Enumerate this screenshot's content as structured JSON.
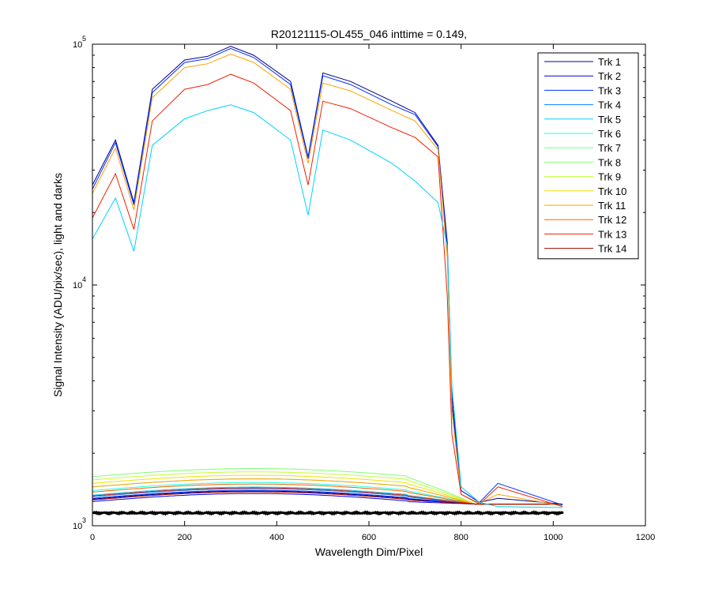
{
  "chart_data": {
    "type": "line",
    "title": "R20121115-OL455_046 inttime = 0.149,",
    "xlabel": "Wavelength Dim/Pixel",
    "ylabel": "Signal Intensity (ADU/pix/sec), light and darks",
    "xlim": [
      0,
      1200
    ],
    "ylim": [
      1000,
      100000
    ],
    "yscale": "log",
    "x_ticks": [
      0,
      200,
      400,
      600,
      800,
      1000,
      1200
    ],
    "y_ticks": [
      {
        "value": 1000,
        "base": "10",
        "exp": "3"
      },
      {
        "value": 10000,
        "base": "10",
        "exp": "4"
      },
      {
        "value": 100000,
        "base": "10",
        "exp": "5"
      }
    ],
    "grid": false,
    "legend_position": "top-right",
    "dark_level": 1130,
    "series": [
      {
        "name": "Trk 1",
        "color": "#00008f",
        "peak": 98000,
        "dark": 1290
      },
      {
        "name": "Trk 2",
        "color": "#0000df",
        "peak": null,
        "dark": 1260
      },
      {
        "name": "Trk 3",
        "color": "#0030ff",
        "peak": 97000,
        "dark": 1300
      },
      {
        "name": "Trk 4",
        "color": "#0080ff",
        "peak": null,
        "dark": 1320
      },
      {
        "name": "Trk 5",
        "color": "#00d0ff",
        "peak": 56000,
        "dark": 1340
      },
      {
        "name": "Trk 6",
        "color": "#20ffdf",
        "peak": null,
        "dark": 1400
      },
      {
        "name": "Trk 7",
        "color": "#70ff8f",
        "peak": null,
        "dark": 1450
      },
      {
        "name": "Trk 8",
        "color": "#7fff70",
        "peak": null,
        "dark": 1600
      },
      {
        "name": "Trk 9",
        "color": "#c0ff30",
        "peak": null,
        "dark": 1550
      },
      {
        "name": "Trk 10",
        "color": "#f0e000",
        "peak": null,
        "dark": 1500
      },
      {
        "name": "Trk 11",
        "color": "#ffa000",
        "peak": 92000,
        "dark": 1450
      },
      {
        "name": "Trk 12",
        "color": "#ff6000",
        "peak": null,
        "dark": 1380
      },
      {
        "name": "Trk 13",
        "color": "#f02000",
        "peak": 75000,
        "dark": 1330
      },
      {
        "name": "Trk 14",
        "color": "#a00000",
        "peak": null,
        "dark": 1280
      }
    ],
    "light_curves": [
      {
        "series": "Trk 1",
        "points": [
          [
            0,
            26000
          ],
          [
            50,
            40000
          ],
          [
            90,
            22000
          ],
          [
            130,
            65000
          ],
          [
            200,
            86000
          ],
          [
            250,
            89000
          ],
          [
            300,
            98000
          ],
          [
            350,
            90000
          ],
          [
            430,
            70000
          ],
          [
            468,
            34000
          ],
          [
            500,
            76000
          ],
          [
            560,
            70000
          ],
          [
            650,
            58000
          ],
          [
            700,
            52000
          ],
          [
            750,
            38000
          ],
          [
            770,
            15000
          ],
          [
            780,
            3500
          ],
          [
            800,
            1400
          ],
          [
            840,
            1250
          ],
          [
            880,
            1300
          ],
          [
            1020,
            1230
          ]
        ]
      },
      {
        "series": "Trk 3",
        "points": [
          [
            0,
            25000
          ],
          [
            50,
            39000
          ],
          [
            90,
            21500
          ],
          [
            130,
            63000
          ],
          [
            200,
            84000
          ],
          [
            250,
            87000
          ],
          [
            300,
            96000
          ],
          [
            350,
            88000
          ],
          [
            430,
            68000
          ],
          [
            468,
            33500
          ],
          [
            500,
            74000
          ],
          [
            560,
            68000
          ],
          [
            650,
            56000
          ],
          [
            700,
            51000
          ],
          [
            750,
            37500
          ],
          [
            770,
            14000
          ],
          [
            780,
            3200
          ],
          [
            800,
            1400
          ],
          [
            840,
            1250
          ],
          [
            880,
            1500
          ],
          [
            1020,
            1220
          ]
        ]
      },
      {
        "series": "Trk 11",
        "points": [
          [
            0,
            24000
          ],
          [
            50,
            37000
          ],
          [
            90,
            20500
          ],
          [
            130,
            60000
          ],
          [
            200,
            80000
          ],
          [
            250,
            83000
          ],
          [
            300,
            91000
          ],
          [
            350,
            84000
          ],
          [
            430,
            65000
          ],
          [
            468,
            32000
          ],
          [
            500,
            69000
          ],
          [
            560,
            64000
          ],
          [
            650,
            53000
          ],
          [
            700,
            48000
          ],
          [
            750,
            36500
          ],
          [
            770,
            13000
          ],
          [
            780,
            3000
          ],
          [
            800,
            1350
          ],
          [
            840,
            1240
          ],
          [
            880,
            1350
          ],
          [
            1020,
            1210
          ]
        ]
      },
      {
        "series": "Trk 13",
        "points": [
          [
            0,
            19000
          ],
          [
            50,
            29000
          ],
          [
            90,
            17000
          ],
          [
            130,
            48000
          ],
          [
            200,
            65000
          ],
          [
            250,
            68000
          ],
          [
            300,
            75000
          ],
          [
            350,
            69000
          ],
          [
            430,
            53000
          ],
          [
            468,
            26000
          ],
          [
            500,
            58000
          ],
          [
            560,
            54000
          ],
          [
            650,
            45000
          ],
          [
            700,
            41000
          ],
          [
            750,
            34000
          ],
          [
            770,
            9000
          ],
          [
            780,
            2400
          ],
          [
            800,
            1350
          ],
          [
            840,
            1230
          ],
          [
            880,
            1450
          ],
          [
            1020,
            1200
          ]
        ]
      },
      {
        "series": "Trk 5",
        "points": [
          [
            0,
            15500
          ],
          [
            50,
            23000
          ],
          [
            90,
            13800
          ],
          [
            130,
            38000
          ],
          [
            200,
            49000
          ],
          [
            250,
            53000
          ],
          [
            300,
            56000
          ],
          [
            350,
            52000
          ],
          [
            430,
            40000
          ],
          [
            468,
            19500
          ],
          [
            500,
            44000
          ],
          [
            560,
            40000
          ],
          [
            650,
            32000
          ],
          [
            700,
            27000
          ],
          [
            750,
            22000
          ],
          [
            770,
            14500
          ],
          [
            780,
            3800
          ],
          [
            800,
            1450
          ],
          [
            840,
            1250
          ],
          [
            880,
            1200
          ],
          [
            1020,
            1190
          ]
        ]
      }
    ]
  }
}
